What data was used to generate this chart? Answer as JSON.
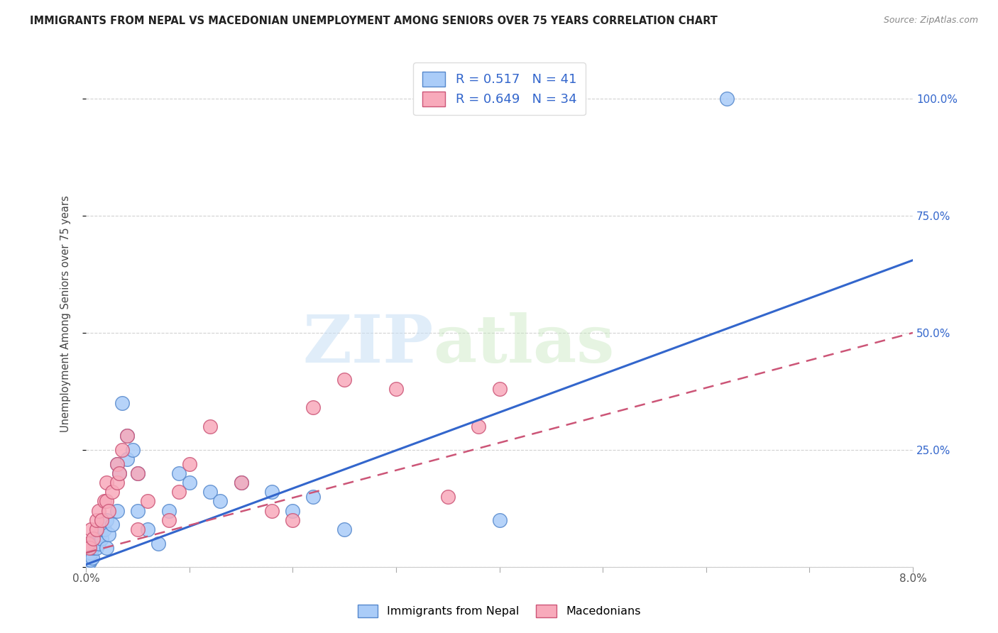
{
  "title": "IMMIGRANTS FROM NEPAL VS MACEDONIAN UNEMPLOYMENT AMONG SENIORS OVER 75 YEARS CORRELATION CHART",
  "source": "Source: ZipAtlas.com",
  "ylabel": "Unemployment Among Seniors over 75 years",
  "x_min": 0.0,
  "x_max": 0.08,
  "y_min": 0.0,
  "y_max": 1.08,
  "x_ticks": [
    0.0,
    0.01,
    0.02,
    0.03,
    0.04,
    0.05,
    0.06,
    0.07,
    0.08
  ],
  "x_tick_labels": [
    "0.0%",
    "",
    "",
    "",
    "",
    "",
    "",
    "",
    "8.0%"
  ],
  "y_ticks": [
    0.0,
    0.25,
    0.5,
    0.75,
    1.0
  ],
  "y_tick_labels_right": [
    "",
    "25.0%",
    "50.0%",
    "75.0%",
    "100.0%"
  ],
  "nepal_color": "#aaccf8",
  "nepal_edge_color": "#5588cc",
  "macedonian_color": "#f8aabb",
  "macedonian_edge_color": "#cc5577",
  "nepal_line_color": "#3366cc",
  "macedonian_line_color": "#cc5577",
  "nepal_R": 0.517,
  "nepal_N": 41,
  "macedonian_R": 0.649,
  "macedonian_N": 34,
  "watermark_zip": "ZIP",
  "watermark_atlas": "atlas",
  "nepal_line_y0": 0.005,
  "nepal_line_y1": 0.655,
  "macedonian_line_y0": 0.03,
  "macedonian_line_y1": 0.5,
  "nepal_scatter_x": [
    0.0002,
    0.0003,
    0.0004,
    0.0005,
    0.0006,
    0.0007,
    0.0008,
    0.001,
    0.001,
    0.0012,
    0.0013,
    0.0015,
    0.0015,
    0.0018,
    0.002,
    0.002,
    0.0022,
    0.0025,
    0.003,
    0.003,
    0.0032,
    0.0035,
    0.004,
    0.004,
    0.0045,
    0.005,
    0.005,
    0.006,
    0.007,
    0.008,
    0.009,
    0.01,
    0.012,
    0.013,
    0.015,
    0.018,
    0.02,
    0.022,
    0.025,
    0.04,
    0.062
  ],
  "nepal_scatter_y": [
    0.02,
    0.01,
    0.015,
    0.03,
    0.02,
    0.04,
    0.05,
    0.04,
    0.06,
    0.05,
    0.07,
    0.06,
    0.08,
    0.08,
    0.04,
    0.1,
    0.07,
    0.09,
    0.12,
    0.22,
    0.2,
    0.35,
    0.23,
    0.28,
    0.25,
    0.12,
    0.2,
    0.08,
    0.05,
    0.12,
    0.2,
    0.18,
    0.16,
    0.14,
    0.18,
    0.16,
    0.12,
    0.15,
    0.08,
    0.1,
    1.0
  ],
  "macedonian_scatter_x": [
    0.0002,
    0.0003,
    0.0005,
    0.0007,
    0.001,
    0.001,
    0.0012,
    0.0015,
    0.0018,
    0.002,
    0.002,
    0.0022,
    0.0025,
    0.003,
    0.003,
    0.0032,
    0.0035,
    0.004,
    0.005,
    0.005,
    0.006,
    0.008,
    0.009,
    0.01,
    0.012,
    0.015,
    0.018,
    0.02,
    0.022,
    0.025,
    0.03,
    0.035,
    0.038,
    0.04
  ],
  "macedonian_scatter_y": [
    0.05,
    0.04,
    0.08,
    0.06,
    0.08,
    0.1,
    0.12,
    0.1,
    0.14,
    0.14,
    0.18,
    0.12,
    0.16,
    0.18,
    0.22,
    0.2,
    0.25,
    0.28,
    0.2,
    0.08,
    0.14,
    0.1,
    0.16,
    0.22,
    0.3,
    0.18,
    0.12,
    0.1,
    0.34,
    0.4,
    0.38,
    0.15,
    0.3,
    0.38
  ],
  "background_color": "#ffffff",
  "grid_color": "#cccccc"
}
